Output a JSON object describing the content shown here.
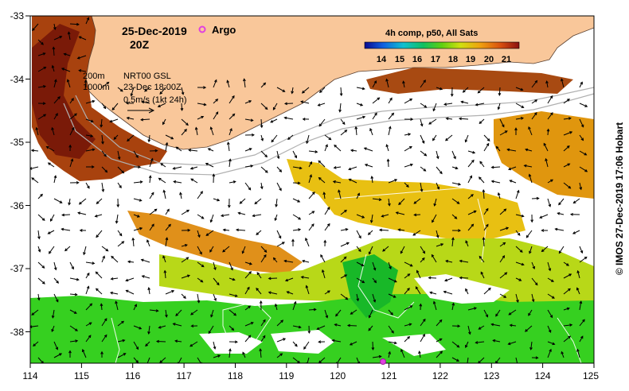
{
  "map": {
    "date_label": "25-Dec-2019",
    "time_label": "20Z",
    "argo_label": "Argo",
    "colorbar": {
      "title": "4h comp, p50, All Sats",
      "ticks": [
        "14",
        "15",
        "16",
        "17",
        "18",
        "19",
        "20",
        "21"
      ]
    },
    "isobath_labels": [
      "200m",
      "1000m"
    ],
    "current_source": "NRT00 GSL",
    "current_date": "23-Dec 18:00Z",
    "arrow_scale": "0.5m/s (1kt 24h)",
    "credit": "© IMOS 27-Dec-2019 17:06 Hobart",
    "x_ticks": [
      "114",
      "115",
      "116",
      "117",
      "118",
      "119",
      "120",
      "121",
      "122",
      "123",
      "124",
      "125"
    ],
    "y_ticks": [
      "-33",
      "-34",
      "-35",
      "-36",
      "-37",
      "-38"
    ],
    "colors": {
      "land": "#f9c79a",
      "argo_marker": "#e040e0",
      "warm_sst": "#b34010",
      "mid_sst": "#e8b020",
      "cool_sst": "#30d020"
    }
  }
}
